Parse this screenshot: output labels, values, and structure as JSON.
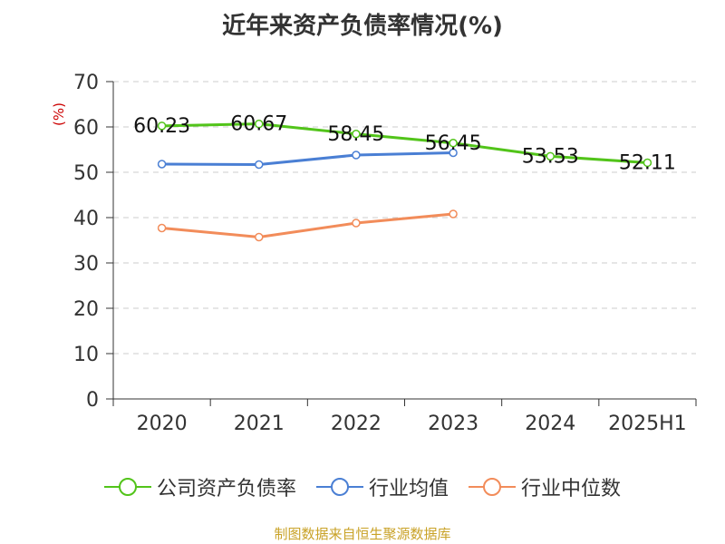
{
  "chart_data": {
    "type": "line",
    "title": "近年来资产负债率情况(%)",
    "ylabel": "(%)",
    "xlabel": "",
    "categories": [
      "2020",
      "2021",
      "2022",
      "2023",
      "2024",
      "2025H1"
    ],
    "ylim": [
      0,
      70
    ],
    "yticks": [
      0,
      10,
      20,
      30,
      40,
      50,
      60,
      70
    ],
    "grid": true,
    "legend_position": "bottom",
    "series": [
      {
        "name": "公司资产负债率",
        "color": "#52c41a",
        "values": [
          60.23,
          60.67,
          58.45,
          56.45,
          53.53,
          52.11
        ],
        "labels": [
          "60.23",
          "60.67",
          "58.45",
          "56.45",
          "53.53",
          "52.11"
        ]
      },
      {
        "name": "行业均值",
        "color": "#4a7fd4",
        "values": [
          51.8,
          51.7,
          53.8,
          54.3,
          null,
          null
        ]
      },
      {
        "name": "行业中位数",
        "color": "#f28c5a",
        "values": [
          37.7,
          35.7,
          38.8,
          40.8,
          null,
          null
        ]
      }
    ]
  },
  "source_note": "制图数据来自恒生聚源数据库"
}
